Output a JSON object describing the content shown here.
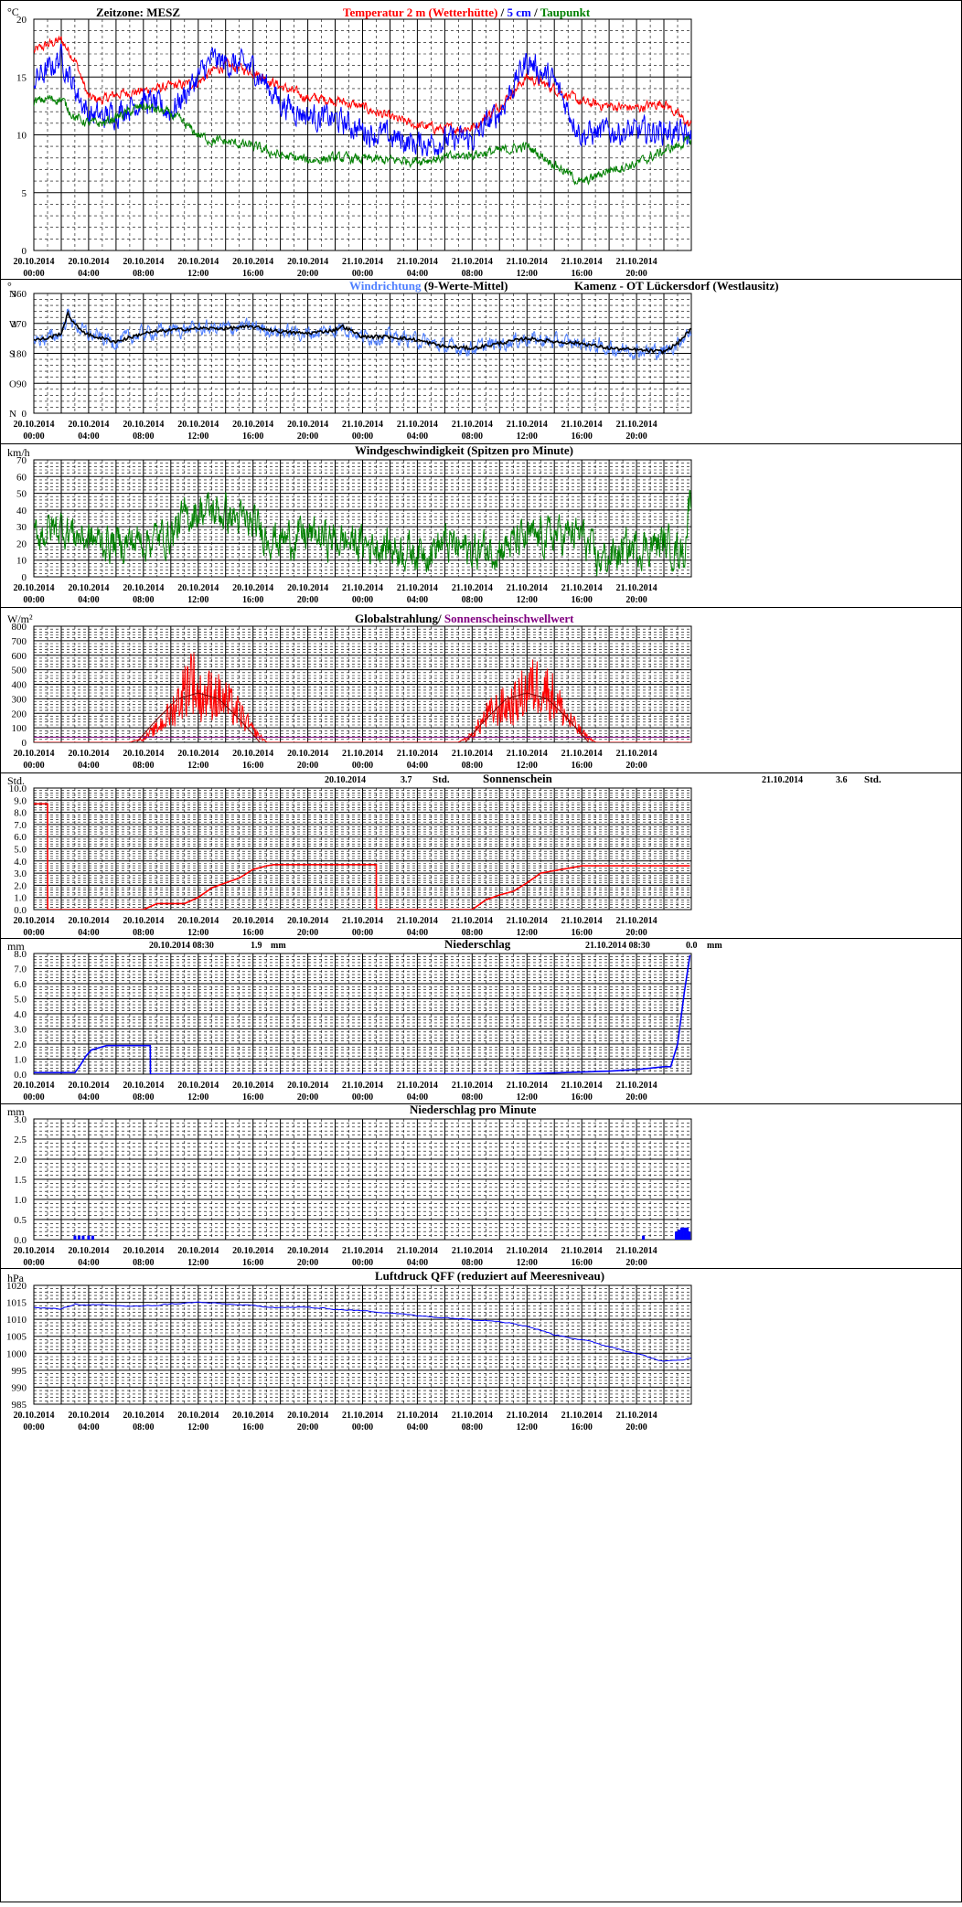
{
  "x_ticks": [
    {
      "date": "20.10.2014",
      "time": "00:00"
    },
    {
      "date": "20.10.2014",
      "time": "04:00"
    },
    {
      "date": "20.10.2014",
      "time": "08:00"
    },
    {
      "date": "20.10.2014",
      "time": "12:00"
    },
    {
      "date": "20.10.2014",
      "time": "16:00"
    },
    {
      "date": "20.10.2014",
      "time": "20:00"
    },
    {
      "date": "21.10.2014",
      "time": "00:00"
    },
    {
      "date": "21.10.2014",
      "time": "04:00"
    },
    {
      "date": "21.10.2014",
      "time": "08:00"
    },
    {
      "date": "21.10.2014",
      "time": "12:00"
    },
    {
      "date": "21.10.2014",
      "time": "16:00"
    },
    {
      "date": "21.10.2014",
      "time": "20:00"
    }
  ],
  "colors": {
    "temperature": "#ff0000",
    "soil_5cm": "#0000ff",
    "dewpoint": "#008000",
    "wind_dir": "#4f7fff",
    "wind_dir_mean": "#000000",
    "wind_speed": "#008000",
    "radiation": "#ff0000",
    "threshold": "#800080",
    "sunshine": "#ff0000",
    "precip": "#0000ff",
    "pressure": "#0000ff"
  },
  "chart_data": [
    {
      "type": "line",
      "id": "temperature",
      "unit": "°C",
      "timezone_label": "Zeitzone: MESZ",
      "title_parts": [
        "Temperatur 2 m (Wetterhütte)",
        " / ",
        "5 cm",
        " / ",
        "Taupunkt"
      ],
      "ylim": [
        0,
        20
      ],
      "yticks": [
        0,
        5,
        10,
        15,
        20
      ],
      "x_hours": [
        0,
        1,
        2,
        3,
        4,
        5,
        6,
        8,
        10,
        12,
        13,
        14,
        16,
        18,
        20,
        22,
        24,
        26,
        28,
        30,
        32,
        34,
        36,
        38,
        40,
        42,
        44,
        46,
        47.9
      ],
      "series": [
        {
          "name": "Temperatur 2 m (Wetterhütte)",
          "values": [
            17.2,
            17.8,
            18.2,
            16.5,
            13.2,
            13.0,
            13.5,
            13.8,
            14.2,
            14.5,
            15.5,
            16.0,
            15.5,
            14.2,
            13.2,
            13.0,
            12.4,
            11.5,
            10.8,
            10.5,
            10.6,
            12.5,
            15.0,
            14.0,
            12.8,
            12.5,
            12.3,
            12.8,
            10.8
          ]
        },
        {
          "name": "5 cm",
          "values": [
            14.8,
            15.5,
            16.8,
            14.0,
            11.8,
            11.5,
            12.0,
            13.0,
            12.0,
            15.0,
            16.5,
            16.2,
            15.8,
            12.8,
            11.7,
            11.3,
            10.4,
            9.8,
            9.2,
            9.5,
            9.6,
            12.0,
            16.5,
            14.5,
            10.0,
            10.3,
            10.2,
            10.4,
            9.8
          ]
        },
        {
          "name": "Taupunkt",
          "values": [
            12.8,
            13.1,
            13.1,
            11.5,
            11.0,
            11.0,
            11.5,
            12.5,
            11.8,
            10.0,
            9.5,
            9.4,
            9.0,
            8.2,
            7.8,
            8.0,
            7.9,
            7.8,
            7.8,
            8.0,
            8.3,
            8.6,
            9.0,
            7.5,
            5.8,
            7.0,
            7.5,
            8.6,
            9.5
          ]
        }
      ]
    },
    {
      "type": "line",
      "id": "wind_direction",
      "unit": "°",
      "title_parts": [
        "Windrichtung",
        " (9-Werte-Mittel)",
        "Kamenz - OT Lückersdorf (Westlausitz)"
      ],
      "ylim": [
        0,
        360
      ],
      "yticks": [
        0,
        90,
        180,
        270,
        360
      ],
      "compass": [
        {
          "value": 360,
          "label": "N"
        },
        {
          "value": 270,
          "label": "W"
        },
        {
          "value": 180,
          "label": "S"
        },
        {
          "value": 90,
          "label": "O"
        },
        {
          "value": 0,
          "label": "N"
        }
      ],
      "x_hours": [
        0,
        1,
        2,
        2.5,
        3,
        4,
        6,
        8,
        10,
        12,
        14,
        16,
        18,
        20,
        22,
        22.5,
        24,
        26,
        28,
        30,
        32,
        34,
        36,
        38,
        40,
        42,
        44,
        46,
        47,
        47.9
      ],
      "series": [
        {
          "name": "Windrichtung",
          "values": [
            220,
            225,
            240,
            300,
            265,
            235,
            215,
            240,
            250,
            255,
            255,
            260,
            245,
            240,
            250,
            262,
            230,
            230,
            220,
            200,
            195,
            210,
            225,
            215,
            210,
            195,
            190,
            185,
            210,
            250
          ]
        }
      ]
    },
    {
      "type": "line",
      "id": "wind_speed",
      "unit": "km/h",
      "title": "Windgeschwindigkeit (Spitzen pro Minute)",
      "ylim": [
        0,
        70
      ],
      "yticks": [
        0,
        10,
        20,
        30,
        40,
        50,
        60,
        70
      ],
      "x_hours": [
        0,
        2,
        4,
        6,
        8,
        10,
        11,
        12,
        14,
        16,
        18,
        20,
        22,
        24,
        26,
        28,
        30,
        32,
        34,
        36,
        38,
        40,
        41,
        42,
        44,
        46,
        47.5,
        47.9
      ],
      "series": [
        {
          "name": "Windgeschwindigkeit",
          "values": [
            25,
            30,
            22,
            20,
            22,
            25,
            35,
            40,
            38,
            30,
            22,
            25,
            22,
            20,
            18,
            15,
            20,
            15,
            18,
            22,
            25,
            25,
            10,
            12,
            18,
            20,
            15,
            50
          ]
        }
      ]
    },
    {
      "type": "line",
      "id": "radiation",
      "unit": "W/m²",
      "title_parts": [
        "Globalstrahlung",
        "/ ",
        "Sonnenscheinschwellwert"
      ],
      "ylim": [
        0,
        800
      ],
      "yticks": [
        0,
        100,
        200,
        300,
        400,
        500,
        600,
        700,
        800
      ],
      "x_hours": [
        0,
        7,
        8,
        9,
        10,
        11,
        11.5,
        12,
        13,
        14,
        15,
        16,
        17,
        24,
        31,
        32,
        33,
        34,
        35,
        36,
        37,
        38,
        39,
        40,
        41,
        47.9
      ],
      "series": [
        {
          "name": "Globalstrahlung",
          "values": [
            0,
            0,
            30,
            120,
            250,
            450,
            600,
            380,
            420,
            350,
            250,
            100,
            0,
            0,
            0,
            60,
            220,
            300,
            320,
            450,
            500,
            380,
            200,
            80,
            0,
            0
          ]
        },
        {
          "name": "Sonnenscheinschwellwert",
          "values": [
            35,
            35,
            35,
            35,
            35,
            35,
            35,
            35,
            35,
            35,
            35,
            35,
            35,
            35,
            35,
            35,
            35,
            35,
            35,
            35,
            35,
            35,
            35,
            35,
            35,
            35
          ]
        }
      ],
      "envelope": {
        "x_hours": [
          7.5,
          9,
          10.5,
          12,
          13.5,
          15,
          16.5,
          31.5,
          33,
          34.5,
          36,
          37.5,
          39,
          40.5
        ],
        "values": [
          0,
          160,
          300,
          340,
          300,
          160,
          0,
          0,
          160,
          300,
          340,
          300,
          160,
          0
        ]
      }
    },
    {
      "type": "line",
      "id": "sunshine",
      "unit": "Std.",
      "title": "Sonnenschein",
      "day_labels": [
        {
          "date": "20.10.2014",
          "value": "3.7",
          "unit": "Std."
        },
        {
          "date": "21.10.2014",
          "value": "3.6",
          "unit": "Std."
        }
      ],
      "ylim": [
        0,
        10
      ],
      "yticks": [
        0.0,
        1.0,
        2.0,
        3.0,
        4.0,
        5.0,
        6.0,
        7.0,
        8.0,
        9.0,
        10.0
      ],
      "x_hours": [
        0,
        1,
        1.01,
        8,
        9,
        11,
        12,
        13,
        14,
        15,
        16,
        17,
        17.5,
        25,
        25.01,
        32,
        33,
        34,
        35,
        36,
        37,
        38,
        39,
        40,
        47.9
      ],
      "series": [
        {
          "name": "Sonnenschein",
          "values": [
            8.7,
            8.7,
            0,
            0,
            0.5,
            0.5,
            1.0,
            1.8,
            2.2,
            2.6,
            3.3,
            3.6,
            3.7,
            3.7,
            0,
            0,
            0.8,
            1.2,
            1.5,
            2.2,
            3.0,
            3.2,
            3.4,
            3.6,
            3.6
          ]
        }
      ]
    },
    {
      "type": "line",
      "id": "precipitation",
      "unit": "mm",
      "title": "Niederschlag",
      "day_labels": [
        {
          "date": "20.10.2014 08:30",
          "value": "1.9",
          "unit": "mm"
        },
        {
          "date": "21.10.2014 08:30",
          "value": "0.0",
          "unit": "mm"
        }
      ],
      "ylim": [
        0,
        8
      ],
      "yticks": [
        0.0,
        1.0,
        2.0,
        3.0,
        4.0,
        5.0,
        6.0,
        7.0,
        8.0
      ],
      "x_hours": [
        0,
        3,
        3.4,
        3.8,
        4.2,
        5.3,
        8.5,
        8.51,
        35,
        42,
        44,
        46,
        46.5,
        47,
        47.5,
        47.9
      ],
      "series": [
        {
          "name": "Niederschlag",
          "values": [
            0.1,
            0.1,
            0.6,
            1.2,
            1.6,
            1.9,
            1.9,
            0,
            0,
            0.2,
            0.3,
            0.5,
            0.5,
            2.0,
            5.5,
            7.9
          ]
        }
      ]
    },
    {
      "type": "bar",
      "id": "precip_per_minute",
      "unit": "mm",
      "title": "Niederschlag pro Minute",
      "ylim": [
        0,
        3
      ],
      "yticks": [
        0.0,
        0.5,
        1.0,
        1.5,
        2.0,
        2.5,
        3.0
      ],
      "x_hours": [
        3.0,
        3.3,
        3.6,
        4.0,
        4.3,
        44.5,
        46.9,
        47.1,
        47.3,
        47.5,
        47.7,
        47.85
      ],
      "series": [
        {
          "name": "Niederschlag pro Minute",
          "values": [
            0.1,
            0.1,
            0.1,
            0.1,
            0.1,
            0.1,
            0.2,
            0.25,
            0.3,
            0.3,
            0.3,
            0.2
          ]
        }
      ]
    },
    {
      "type": "line",
      "id": "pressure",
      "unit": "hPa",
      "title": "Luftdruck QFF (reduziert auf Meeresniveau)",
      "ylim": [
        985,
        1020
      ],
      "yticks": [
        985,
        990,
        995,
        1000,
        1005,
        1010,
        1015,
        1020
      ],
      "x_hours": [
        0,
        2,
        3,
        4,
        6,
        8,
        10,
        12,
        14,
        16,
        18,
        20,
        22,
        24,
        26,
        28,
        30,
        32,
        34,
        36,
        38,
        40,
        42,
        44,
        46,
        47.9
      ],
      "series": [
        {
          "name": "Luftdruck QFF",
          "values": [
            1013.5,
            1013.0,
            1014.5,
            1014.2,
            1014.0,
            1013.8,
            1014.5,
            1015.0,
            1014.5,
            1014.0,
            1013.5,
            1013.5,
            1013.0,
            1012.5,
            1012.0,
            1011.0,
            1010.5,
            1010.0,
            1009.5,
            1008.0,
            1005.5,
            1004.0,
            1002.0,
            1000.0,
            997.5,
            998.5
          ]
        }
      ]
    }
  ]
}
